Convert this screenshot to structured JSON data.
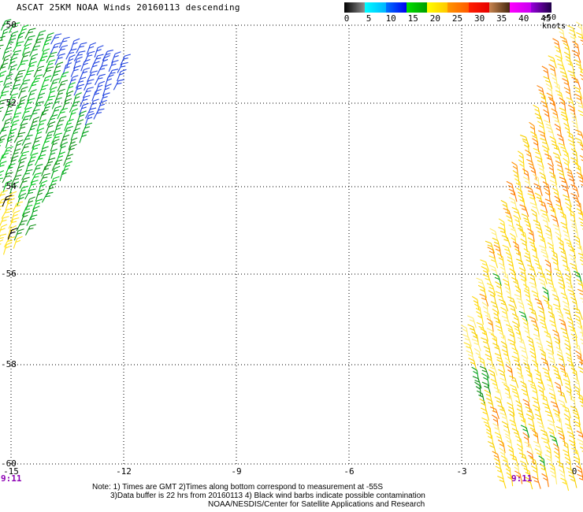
{
  "title": "ASCAT 25KM NOAA Winds 20160113 descending",
  "colorbar": {
    "tick_labels": [
      "0",
      "5",
      "10",
      "15",
      "20",
      "25",
      "30",
      "35",
      "40",
      "45",
      ">50 knots"
    ],
    "segments": [
      [
        "#000000",
        "#909090"
      ],
      [
        "#00ffff",
        "#00b4ff"
      ],
      [
        "#0073ff",
        "#0000f0"
      ],
      [
        "#00e000",
        "#009c00"
      ],
      [
        "#ffff00",
        "#ffc800"
      ],
      [
        "#ff9600",
        "#ff5a00"
      ],
      [
        "#ff1e00",
        "#e60000"
      ],
      [
        "#c8854f",
        "#46280f"
      ],
      [
        "#ff00ff",
        "#c800f0"
      ],
      [
        "#9600dc",
        "#1e0046"
      ]
    ]
  },
  "axes": {
    "lat_ticks": [
      {
        "label": "-50",
        "y": 32
      },
      {
        "label": "-52",
        "y": 131
      },
      {
        "label": "-54",
        "y": 237
      },
      {
        "label": "-56",
        "y": 348
      },
      {
        "label": "-58",
        "y": 463
      },
      {
        "label": "-60",
        "y": 589
      }
    ],
    "lon_ticks": [
      {
        "label": "-15",
        "x": 14
      },
      {
        "label": "-12",
        "x": 157
      },
      {
        "label": "-9",
        "x": 300
      },
      {
        "label": "-6",
        "x": 443
      },
      {
        "label": "-3",
        "x": 586
      },
      {
        "label": "0",
        "x": 729
      }
    ]
  },
  "times": [
    {
      "label": "9:11"
    },
    {
      "label": "9:11"
    }
  ],
  "notes": [
    {
      "text": "Note: 1) Times are GMT 2)Times along bottom correspond to measurement at -55S"
    },
    {
      "text": "3)Data buffer is 22 hrs from 20160113 4) Black wind barbs indicate possible contamination"
    },
    {
      "text": "NOAA/NESDIS/Center for Satellite Applications and Research"
    }
  ],
  "chart_data": {
    "type": "scatter",
    "title": "ASCAT 25KM NOAA Winds 20160113 descending",
    "x_ticks": [
      -15,
      -12,
      -9,
      -6,
      -3,
      0
    ],
    "y_ticks": [
      -50,
      -52,
      -54,
      -56,
      -58,
      -60
    ],
    "legend": {
      "units": "knots",
      "bins": [
        0,
        5,
        10,
        15,
        20,
        25,
        30,
        35,
        40,
        45,
        50
      ],
      "position": "top-right"
    },
    "grid": true,
    "pass_times_at_55S": [
      "9:11",
      "9:11"
    ],
    "black_barbs": [
      [
        8,
        250
      ],
      [
        15,
        292
      ]
    ],
    "swaths": [
      {
        "name": "left",
        "description": "NE-SW satellite swath in upper-left; winds 5-20 knots (cyan/blue/green), ~20-25 knots (yellow) at southern tip",
        "speed_range_knots": [
          5,
          25
        ],
        "mirror": false,
        "angle": 22,
        "lattice": {
          "origin": [
            -15,
            22
          ],
          "a": [
            10.8,
            3
          ],
          "b": [
            -3,
            10.5
          ],
          "rows": 31,
          "cols": 23
        },
        "region": {
          "y_min": 26,
          "y_max": 312,
          "x_min": -4,
          "right_edge": [
            195,
            30,
            -0.607
          ]
        },
        "zones": {
          "cyan_edge": [
            95,
            30,
            1.62
          ],
          "blue_edge": [
            55,
            30,
            0.464
          ],
          "yellow_tip": {
            "y_min": 240,
            "x_max": 22
          }
        },
        "colors": {
          "cyan": "#41a0ff",
          "blue": "#2143e0",
          "greens": [
            "#00c41b",
            "#00a31a",
            "#0b8f12"
          ],
          "yellow": "#ffe11a"
        }
      },
      {
        "name": "right",
        "description": "N-S satellite swath on right side; mostly 20-25 knots (yellow) with 25-30 knot orange patches, 15-20 knot green barbs along the SW edge",
        "speed_range_knots": [
          15,
          35
        ],
        "mirror": true,
        "angle": -12,
        "lattice": {
          "origin": [
            495,
            24
          ],
          "a": [
            10.8,
            -2.6
          ],
          "b": [
            2.6,
            10.6
          ],
          "rows": 58,
          "cols": 25
        },
        "region": {
          "y_min": 30,
          "y_max": 612,
          "x_max": 744,
          "left_edge": [
            710,
            40,
            -0.3246
          ]
        },
        "zones": {
          "green_edge": {
            "y_min": 462,
            "width": 55
          },
          "scatter_green": {
            "y_min": 340,
            "p": 0.02
          },
          "orange_bands": [
            [
              85,
              142,
              0.5
            ],
            [
              190,
              248,
              0.45
            ]
          ],
          "right_orange": {
            "x_min": 688,
            "y_max": 260,
            "p": 0.3
          },
          "corner_orange": {
            "x_min": 640,
            "y_min": 440,
            "p": 0.16
          },
          "base_orange_p": 0.06
        },
        "colors": {
          "yellows": [
            "#ffdf1a",
            "#ffd400",
            "#ffec70",
            "#f6cf00"
          ],
          "oranges": [
            "#ff9100",
            "#ff7c00"
          ],
          "greens": [
            "#00a31a",
            "#078c10"
          ]
        }
      }
    ]
  }
}
